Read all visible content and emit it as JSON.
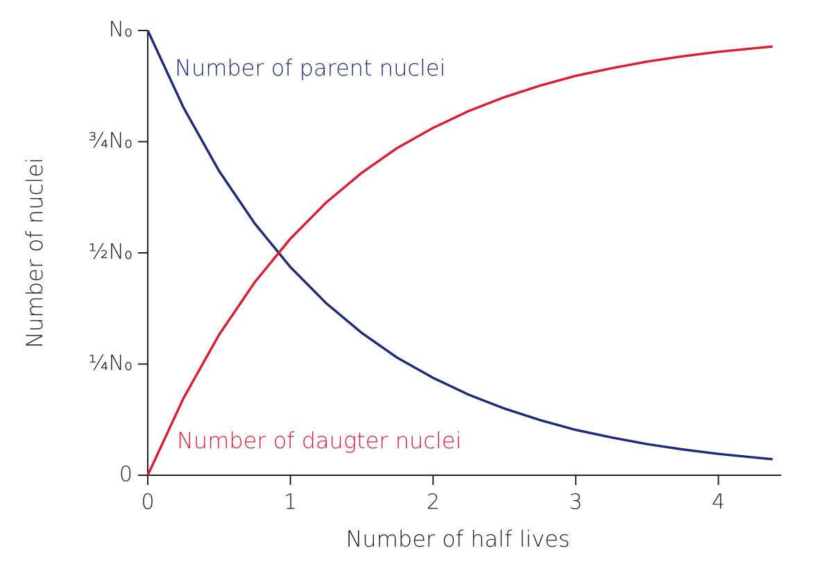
{
  "chart_data": {
    "type": "line",
    "x_label": "Number of half lives",
    "y_label": "Number of nuclei",
    "x": [
      0,
      0.25,
      0.5,
      0.75,
      1,
      1.25,
      1.5,
      1.75,
      2,
      2.25,
      2.5,
      2.75,
      3,
      3.25,
      3.5,
      3.75,
      4,
      4.25,
      4.38
    ],
    "series": [
      {
        "name": "Number of parent nuclei",
        "color": "#1f2a7a",
        "values": [
          1,
          0.827,
          0.684,
          0.566,
          0.468,
          0.387,
          0.32,
          0.264,
          0.219,
          0.181,
          0.15,
          0.124,
          0.102,
          0.085,
          0.07,
          0.058,
          0.048,
          0.04,
          0.036
        ]
      },
      {
        "name": "Number of daugter nuclei",
        "color": "#d91e36",
        "values": [
          0,
          0.173,
          0.316,
          0.434,
          0.532,
          0.613,
          0.68,
          0.736,
          0.781,
          0.819,
          0.85,
          0.876,
          0.898,
          0.915,
          0.93,
          0.942,
          0.952,
          0.96,
          0.964
        ]
      }
    ],
    "xlim": [
      0,
      4.43
    ],
    "xticks": [
      0,
      1,
      2,
      3,
      4
    ],
    "ylim": [
      0,
      1
    ],
    "yticks": [
      0,
      {
        "value": 0.25,
        "label": "¼N₀"
      },
      {
        "value": 0.5,
        "label": "½N₀"
      },
      {
        "value": 0.75,
        "label": "¾N₀"
      },
      {
        "value": 1,
        "label": "N₀"
      }
    ],
    "grid": false
  }
}
